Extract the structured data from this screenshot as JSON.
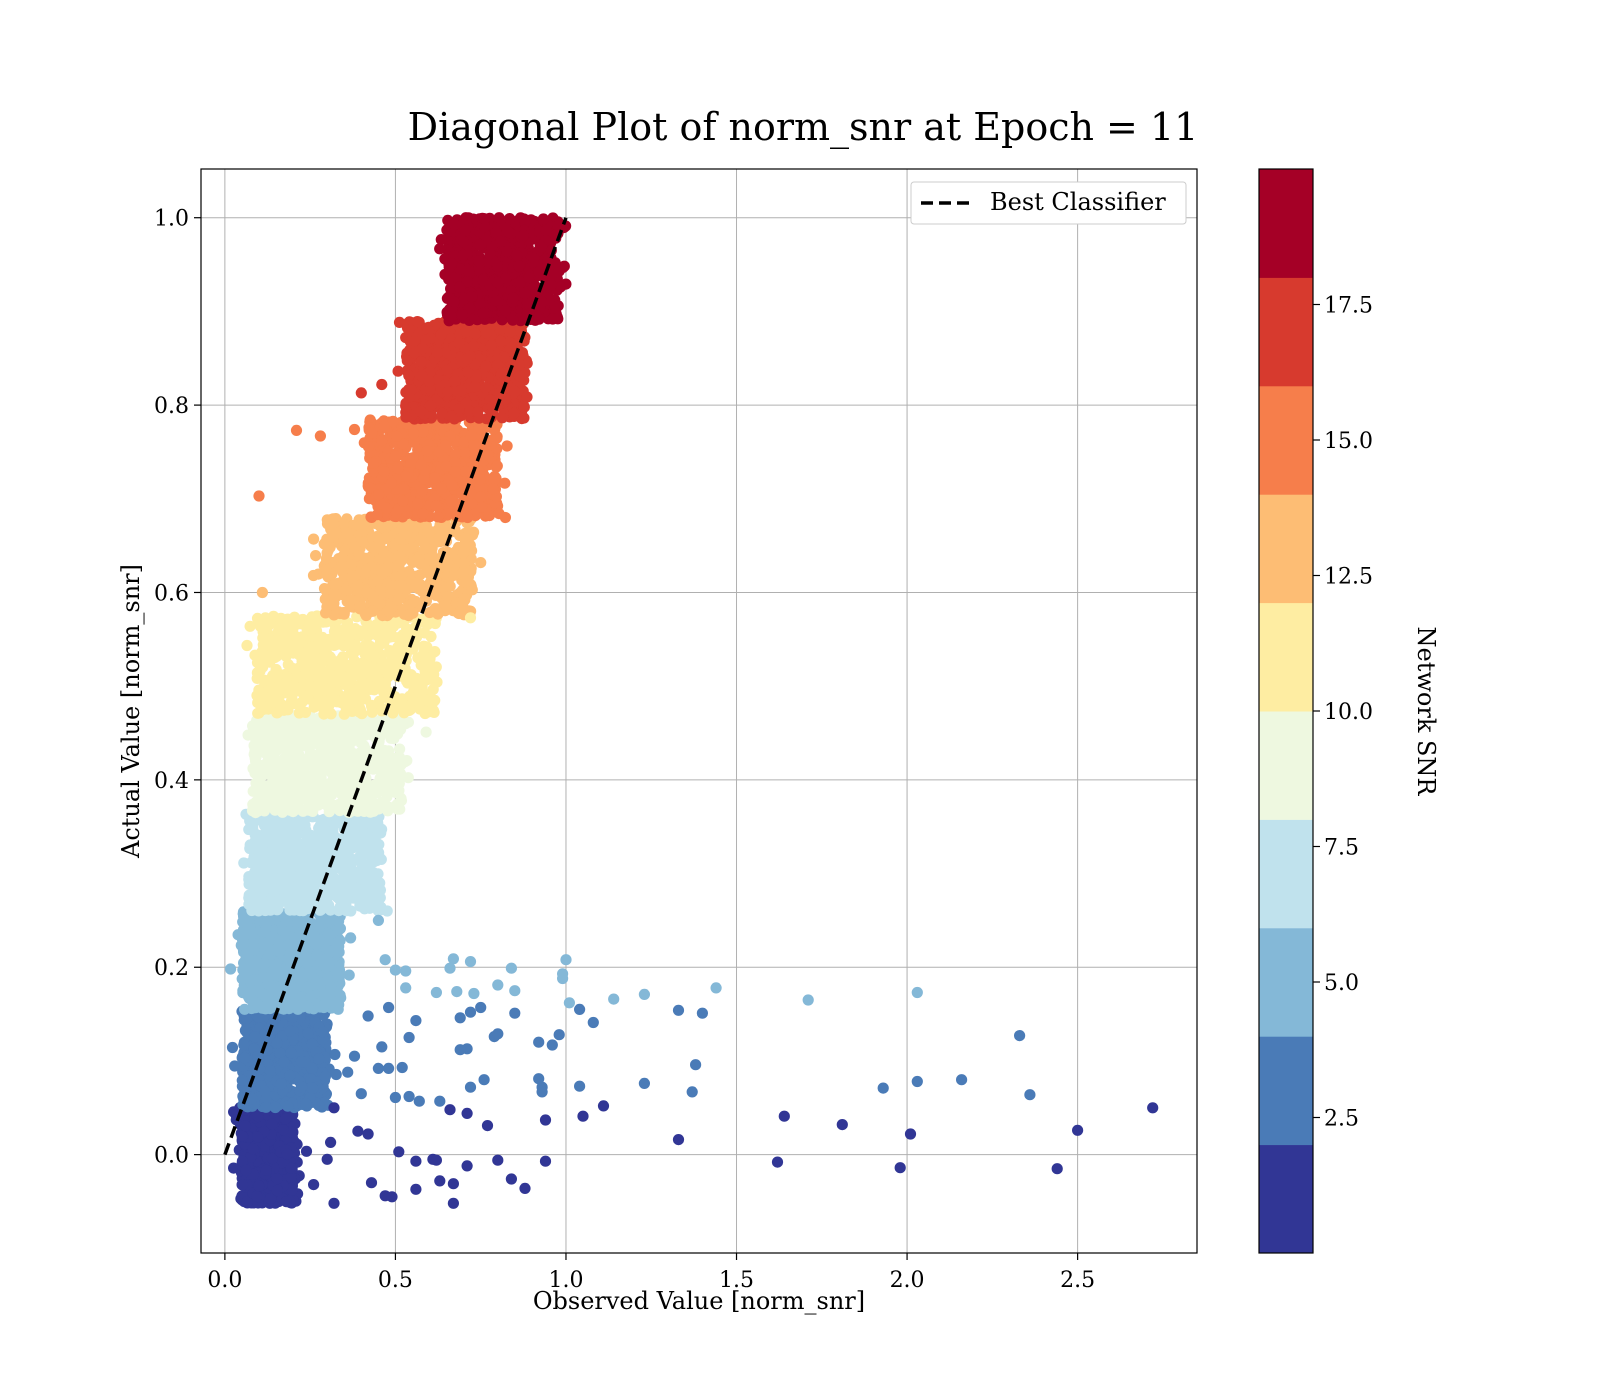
{
  "chart_data": {
    "type": "scatter",
    "title": "Diagonal Plot of norm_snr at Epoch = 11",
    "xlabel": "Observed Value [norm_snr]",
    "ylabel": "Actual Value [norm_snr]",
    "xlim": [
      -0.07,
      2.85
    ],
    "ylim": [
      -0.105,
      1.052
    ],
    "xticks": [
      0.0,
      0.5,
      1.0,
      1.5,
      2.0,
      2.5
    ],
    "xtick_labels": [
      "0.0",
      "0.5",
      "1.0",
      "1.5",
      "2.0",
      "2.5"
    ],
    "yticks": [
      0.0,
      0.2,
      0.4,
      0.6,
      0.8,
      1.0
    ],
    "ytick_labels": [
      "0.0",
      "0.2",
      "0.4",
      "0.6",
      "0.8",
      "1.0"
    ],
    "grid": true,
    "legend": {
      "position": "top-right",
      "entries": [
        {
          "label": "Best Classifier",
          "style": "dashed",
          "color": "#000000"
        }
      ]
    },
    "reference_line": {
      "name": "Best Classifier",
      "x": [
        0,
        1
      ],
      "y": [
        0,
        1
      ]
    },
    "colorbar": {
      "label": "Network SNR",
      "range": [
        0.0,
        20.0
      ],
      "ticks": [
        2.5,
        5.0,
        7.5,
        10.0,
        12.5,
        15.0,
        17.5
      ],
      "tick_labels": [
        "2.5",
        "5.0",
        "7.5",
        "10.0",
        "12.5",
        "15.0",
        "17.5"
      ],
      "colors": [
        "#313695",
        "#4a7bb7",
        "#84b8d7",
        "#c0e2ed",
        "#eef8e0",
        "#feeda2",
        "#fdbd74",
        "#f67e4b",
        "#d73a2e",
        "#a50026"
      ]
    },
    "bands": [
      {
        "y": [
          -0.052,
          0.05
        ],
        "x_core": [
          0.05,
          0.2
        ],
        "spread": 0.04,
        "color_index": 0
      },
      {
        "y": [
          0.05,
          0.155
        ],
        "x_core": [
          0.05,
          0.3
        ],
        "spread": 0.04,
        "color_index": 1
      },
      {
        "y": [
          0.155,
          0.26
        ],
        "x_core": [
          0.05,
          0.34
        ],
        "spread": 0.04,
        "color_index": 2
      },
      {
        "y": [
          0.26,
          0.365
        ],
        "x_core": [
          0.07,
          0.46
        ],
        "spread": 0.03,
        "color_index": 3
      },
      {
        "y": [
          0.365,
          0.47
        ],
        "x_core": [
          0.08,
          0.52
        ],
        "spread": 0.03,
        "color_index": 4
      },
      {
        "y": [
          0.47,
          0.575
        ],
        "x_core": [
          0.09,
          0.62
        ],
        "spread": 0.04,
        "color_index": 5
      },
      {
        "y": [
          0.575,
          0.68
        ],
        "x_core": [
          0.29,
          0.73
        ],
        "spread": 0.04,
        "color_index": 6
      },
      {
        "y": [
          0.68,
          0.785
        ],
        "x_core": [
          0.42,
          0.8
        ],
        "spread": 0.04,
        "color_index": 7
      },
      {
        "y": [
          0.785,
          0.89
        ],
        "x_core": [
          0.53,
          0.88
        ],
        "spread": 0.04,
        "color_index": 8
      },
      {
        "y": [
          0.89,
          1.0
        ],
        "x_core": [
          0.65,
          0.98
        ],
        "spread": 0.03,
        "color_index": 9
      }
    ],
    "outliers": [
      [
        0.1,
        0.703,
        7
      ],
      [
        0.11,
        0.6,
        6
      ],
      [
        0.21,
        0.773,
        7
      ],
      [
        0.28,
        0.767,
        7
      ],
      [
        0.26,
        0.657,
        6
      ],
      [
        0.4,
        0.813,
        8
      ],
      [
        0.46,
        0.822,
        8
      ],
      [
        0.38,
        0.774,
        7
      ],
      [
        0.72,
        0.573,
        5
      ],
      [
        0.59,
        0.451,
        4
      ],
      [
        0.45,
        0.25,
        2
      ],
      [
        0.47,
        0.208,
        2
      ],
      [
        0.5,
        0.197,
        2
      ],
      [
        0.53,
        0.196,
        2
      ],
      [
        0.53,
        0.178,
        2
      ],
      [
        0.62,
        0.173,
        2
      ],
      [
        0.66,
        0.199,
        2
      ],
      [
        0.67,
        0.209,
        2
      ],
      [
        0.68,
        0.174,
        2
      ],
      [
        0.72,
        0.206,
        2
      ],
      [
        0.73,
        0.172,
        2
      ],
      [
        0.8,
        0.181,
        2
      ],
      [
        0.84,
        0.199,
        2
      ],
      [
        0.85,
        0.175,
        2
      ],
      [
        0.99,
        0.193,
        2
      ],
      [
        1.0,
        0.208,
        2
      ],
      [
        1.01,
        0.162,
        2
      ],
      [
        0.99,
        0.188,
        2
      ],
      [
        1.14,
        0.166,
        2
      ],
      [
        1.23,
        0.171,
        2
      ],
      [
        1.44,
        0.178,
        2
      ],
      [
        1.71,
        0.165,
        2
      ],
      [
        2.03,
        0.173,
        2
      ],
      [
        0.42,
        0.148,
        1
      ],
      [
        0.46,
        0.115,
        1
      ],
      [
        0.48,
        0.157,
        1
      ],
      [
        0.56,
        0.143,
        1
      ],
      [
        0.54,
        0.125,
        1
      ],
      [
        0.69,
        0.146,
        1
      ],
      [
        0.72,
        0.152,
        1
      ],
      [
        0.75,
        0.157,
        1
      ],
      [
        0.71,
        0.113,
        1
      ],
      [
        0.69,
        0.112,
        1
      ],
      [
        0.79,
        0.126,
        1
      ],
      [
        0.8,
        0.129,
        1
      ],
      [
        0.85,
        0.151,
        1
      ],
      [
        0.92,
        0.12,
        1
      ],
      [
        0.96,
        0.117,
        1
      ],
      [
        0.98,
        0.128,
        1
      ],
      [
        1.04,
        0.155,
        1
      ],
      [
        1.08,
        0.141,
        1
      ],
      [
        1.33,
        0.154,
        1
      ],
      [
        1.4,
        0.151,
        1
      ],
      [
        1.38,
        0.096,
        1
      ],
      [
        0.45,
        0.092,
        1
      ],
      [
        0.48,
        0.092,
        1
      ],
      [
        0.52,
        0.093,
        1
      ],
      [
        0.5,
        0.061,
        1
      ],
      [
        0.54,
        0.062,
        1
      ],
      [
        0.57,
        0.057,
        1
      ],
      [
        0.63,
        0.057,
        1
      ],
      [
        0.72,
        0.072,
        1
      ],
      [
        0.76,
        0.08,
        1
      ],
      [
        0.92,
        0.081,
        1
      ],
      [
        0.93,
        0.072,
        1
      ],
      [
        0.93,
        0.067,
        1
      ],
      [
        1.04,
        0.073,
        1
      ],
      [
        1.23,
        0.076,
        1
      ],
      [
        1.37,
        0.067,
        1
      ],
      [
        1.93,
        0.071,
        1
      ],
      [
        2.03,
        0.078,
        1
      ],
      [
        2.16,
        0.08,
        1
      ],
      [
        2.33,
        0.127,
        1
      ],
      [
        2.36,
        0.064,
        1
      ],
      [
        0.38,
        0.105,
        1
      ],
      [
        0.36,
        0.088,
        1
      ],
      [
        0.4,
        0.065,
        1
      ],
      [
        0.66,
        0.048,
        0
      ],
      [
        0.71,
        0.044,
        0
      ],
      [
        0.77,
        0.031,
        0
      ],
      [
        0.94,
        0.037,
        0
      ],
      [
        1.05,
        0.041,
        0
      ],
      [
        1.11,
        0.052,
        0
      ],
      [
        1.64,
        0.041,
        0
      ],
      [
        1.81,
        0.032,
        0
      ],
      [
        2.01,
        0.022,
        0
      ],
      [
        2.5,
        0.026,
        0
      ],
      [
        2.72,
        0.05,
        0
      ],
      [
        1.33,
        0.016,
        0
      ],
      [
        0.51,
        0.003,
        0
      ],
      [
        0.56,
        -0.007,
        0
      ],
      [
        0.61,
        -0.005,
        0
      ],
      [
        0.62,
        -0.006,
        0
      ],
      [
        0.71,
        -0.012,
        0
      ],
      [
        0.8,
        -0.006,
        0
      ],
      [
        0.94,
        -0.007,
        0
      ],
      [
        1.62,
        -0.008,
        0
      ],
      [
        1.98,
        -0.014,
        0
      ],
      [
        2.44,
        -0.015,
        0
      ],
      [
        0.63,
        -0.028,
        0
      ],
      [
        0.67,
        -0.031,
        0
      ],
      [
        0.84,
        -0.026,
        0
      ],
      [
        0.88,
        -0.036,
        0
      ],
      [
        0.56,
        -0.037,
        0
      ],
      [
        0.67,
        -0.052,
        0
      ],
      [
        0.47,
        -0.044,
        0
      ],
      [
        0.49,
        -0.045,
        0
      ],
      [
        0.43,
        -0.03,
        0
      ],
      [
        0.42,
        0.022,
        0
      ],
      [
        0.39,
        0.025,
        0
      ],
      [
        0.32,
        0.05,
        0
      ],
      [
        0.32,
        -0.052,
        0
      ],
      [
        0.26,
        -0.032,
        0
      ],
      [
        0.3,
        -0.005,
        0
      ],
      [
        0.31,
        0.013,
        0
      ]
    ]
  }
}
